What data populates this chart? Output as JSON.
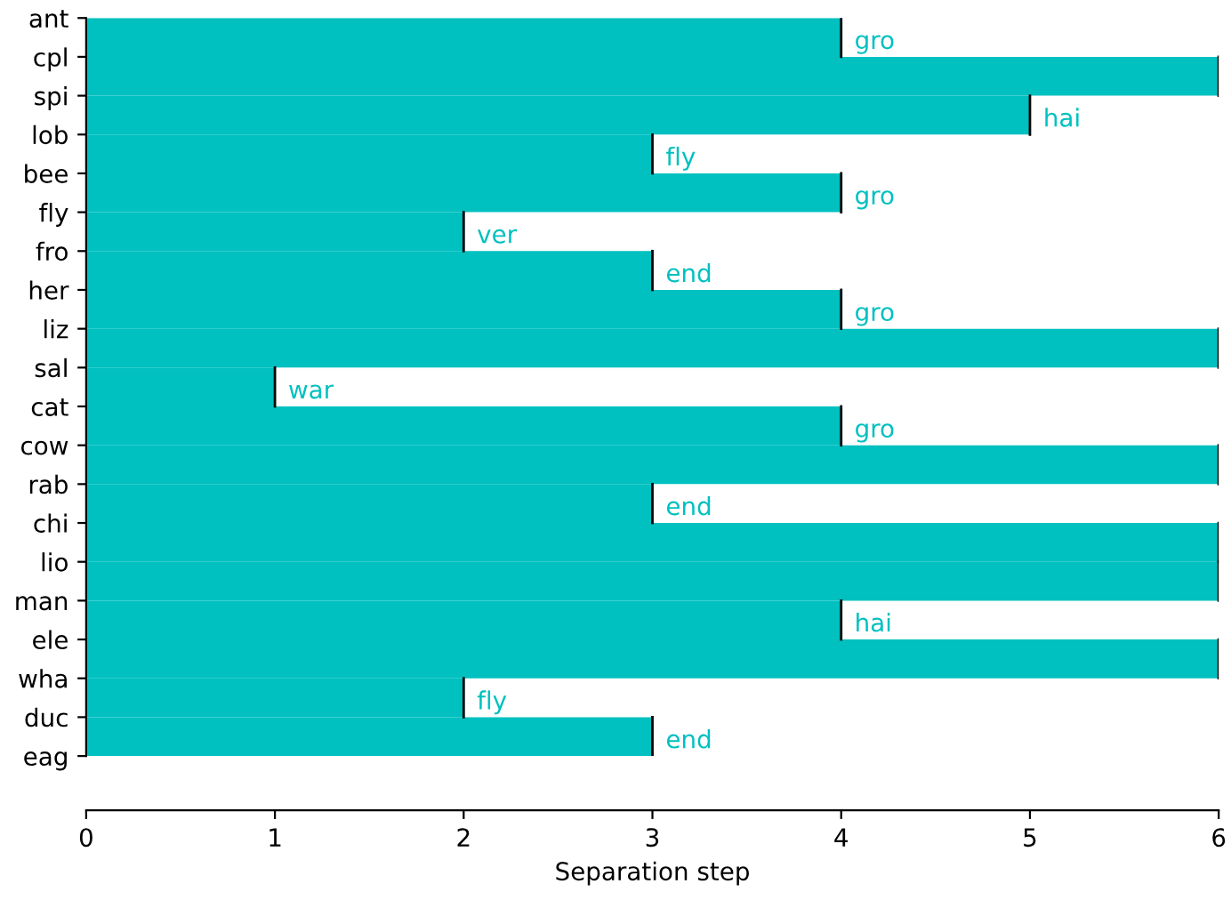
{
  "chart_data": {
    "type": "bar",
    "orientation": "horizontal",
    "xlabel": "Separation step",
    "categories": [
      "ant",
      "cpl",
      "spi",
      "lob",
      "bee",
      "fly",
      "fro",
      "her",
      "liz",
      "sal",
      "cat",
      "cow",
      "rab",
      "chi",
      "lio",
      "man",
      "ele",
      "wha",
      "duc",
      "eag"
    ],
    "values": [
      4,
      6,
      5,
      3,
      4,
      2,
      3,
      4,
      6,
      1,
      4,
      6,
      3,
      6,
      6,
      4,
      6,
      2,
      3,
      null
    ],
    "value_labels": [
      "gro",
      null,
      "hai",
      "fly",
      "gro",
      "ver",
      "end",
      "gro",
      null,
      "war",
      "gro",
      null,
      "end",
      null,
      null,
      "hai",
      null,
      "fly",
      "end",
      null
    ],
    "color": "#00c0c0",
    "xlim": [
      0,
      6
    ],
    "xticks": [
      0,
      1,
      2,
      3,
      4,
      5,
      6
    ],
    "grid": false,
    "legend": false
  }
}
